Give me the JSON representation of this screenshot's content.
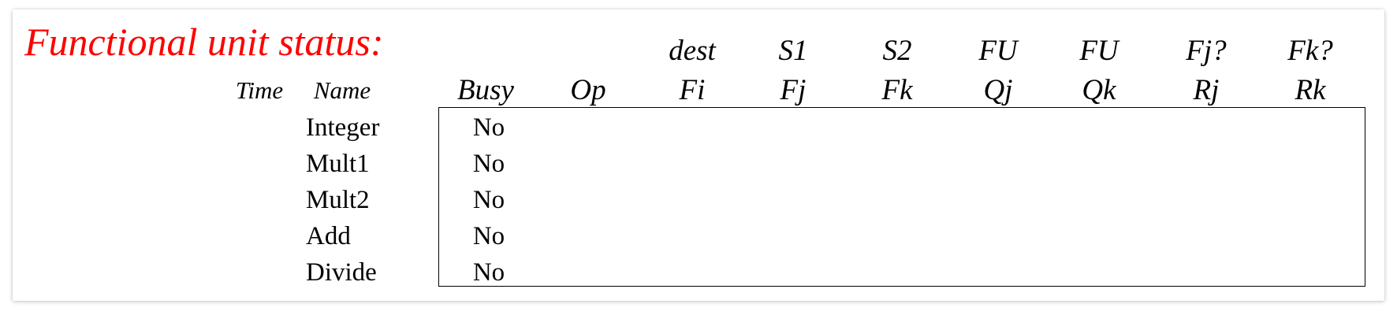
{
  "title": "Functional unit status:",
  "headers": {
    "top": {
      "fi": "dest",
      "fj": "S1",
      "fk": "S2",
      "qj": "FU",
      "qk": "FU",
      "rj": "Fj?",
      "rk": "Fk?"
    },
    "bottom": {
      "time": "Time",
      "name": "Name",
      "busy": "Busy",
      "op": "Op",
      "fi": "Fi",
      "fj": "Fj",
      "fk": "Fk",
      "qj": "Qj",
      "qk": "Qk",
      "rj": "Rj",
      "rk": "Rk"
    }
  },
  "rows": [
    {
      "name": "Integer",
      "busy": "No"
    },
    {
      "name": "Mult1",
      "busy": "No"
    },
    {
      "name": "Mult2",
      "busy": "No"
    },
    {
      "name": "Add",
      "busy": "No"
    },
    {
      "name": "Divide",
      "busy": "No"
    }
  ],
  "colors": {
    "title": "#ff0000",
    "text": "#000000"
  }
}
